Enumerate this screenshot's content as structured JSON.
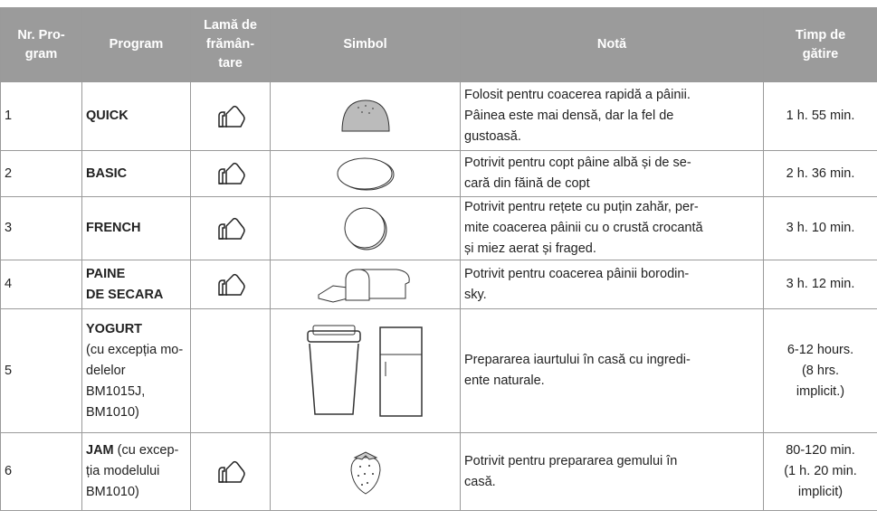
{
  "columns": [
    [
      "Nr. Pro-",
      "gram"
    ],
    [
      "Program"
    ],
    [
      "Lamă de",
      "frămân-",
      "tare"
    ],
    [
      "Simbol"
    ],
    [
      "Notă"
    ],
    [
      "Timp de",
      "gătire"
    ]
  ],
  "rows": [
    {
      "nr": "1",
      "program": [
        "QUICK"
      ],
      "detail": [],
      "note": [
        "Folosit pentru coacerea rapidă a pâinii.",
        "Pâinea este mai densă, dar la fel de",
        "gustoasă."
      ],
      "time": [
        "1 h. 55 min."
      ]
    },
    {
      "nr": "2",
      "program": [
        "BASIC"
      ],
      "detail": [],
      "note": [
        "Potrivit pentru copt pâine albă și de se-",
        "cară din făină de copt"
      ],
      "time": [
        "2 h. 36 min."
      ]
    },
    {
      "nr": "3",
      "program": [
        "FRENCH"
      ],
      "detail": [],
      "note": [
        "Potrivit pentru rețete cu puțin zahăr, per-",
        "mite coacerea pâinii cu o crustă crocantă",
        "și miez aerat și fraged."
      ],
      "time": [
        "3 h. 10 min."
      ]
    },
    {
      "nr": "4",
      "program": [
        "PAINE",
        "DE SECARA"
      ],
      "detail": [],
      "note": [
        "Potrivit pentru coacerea pâinii borodin-",
        "sky."
      ],
      "time": [
        "3 h. 12 min."
      ]
    },
    {
      "nr": "5",
      "program": [
        "YOGURT"
      ],
      "detail": [
        "(cu excepția mo-",
        "delelor BM1015J,",
        "BM1010)"
      ],
      "note": [
        "Prepararea iaurtului în casă cu ingredi-",
        "ente naturale."
      ],
      "time": [
        "6-12 hours.",
        "(8 hrs.",
        "implicit.)"
      ]
    },
    {
      "nr": "6",
      "program": [
        "JAM"
      ],
      "detail": [
        "(cu excep-",
        "ția modelului",
        "BM1010)"
      ],
      "note": [
        "Potrivit pentru prepararea gemului în",
        "casă."
      ],
      "time": [
        "80-120 min.",
        "(1 h. 20 min.",
        "implicit)"
      ]
    }
  ]
}
